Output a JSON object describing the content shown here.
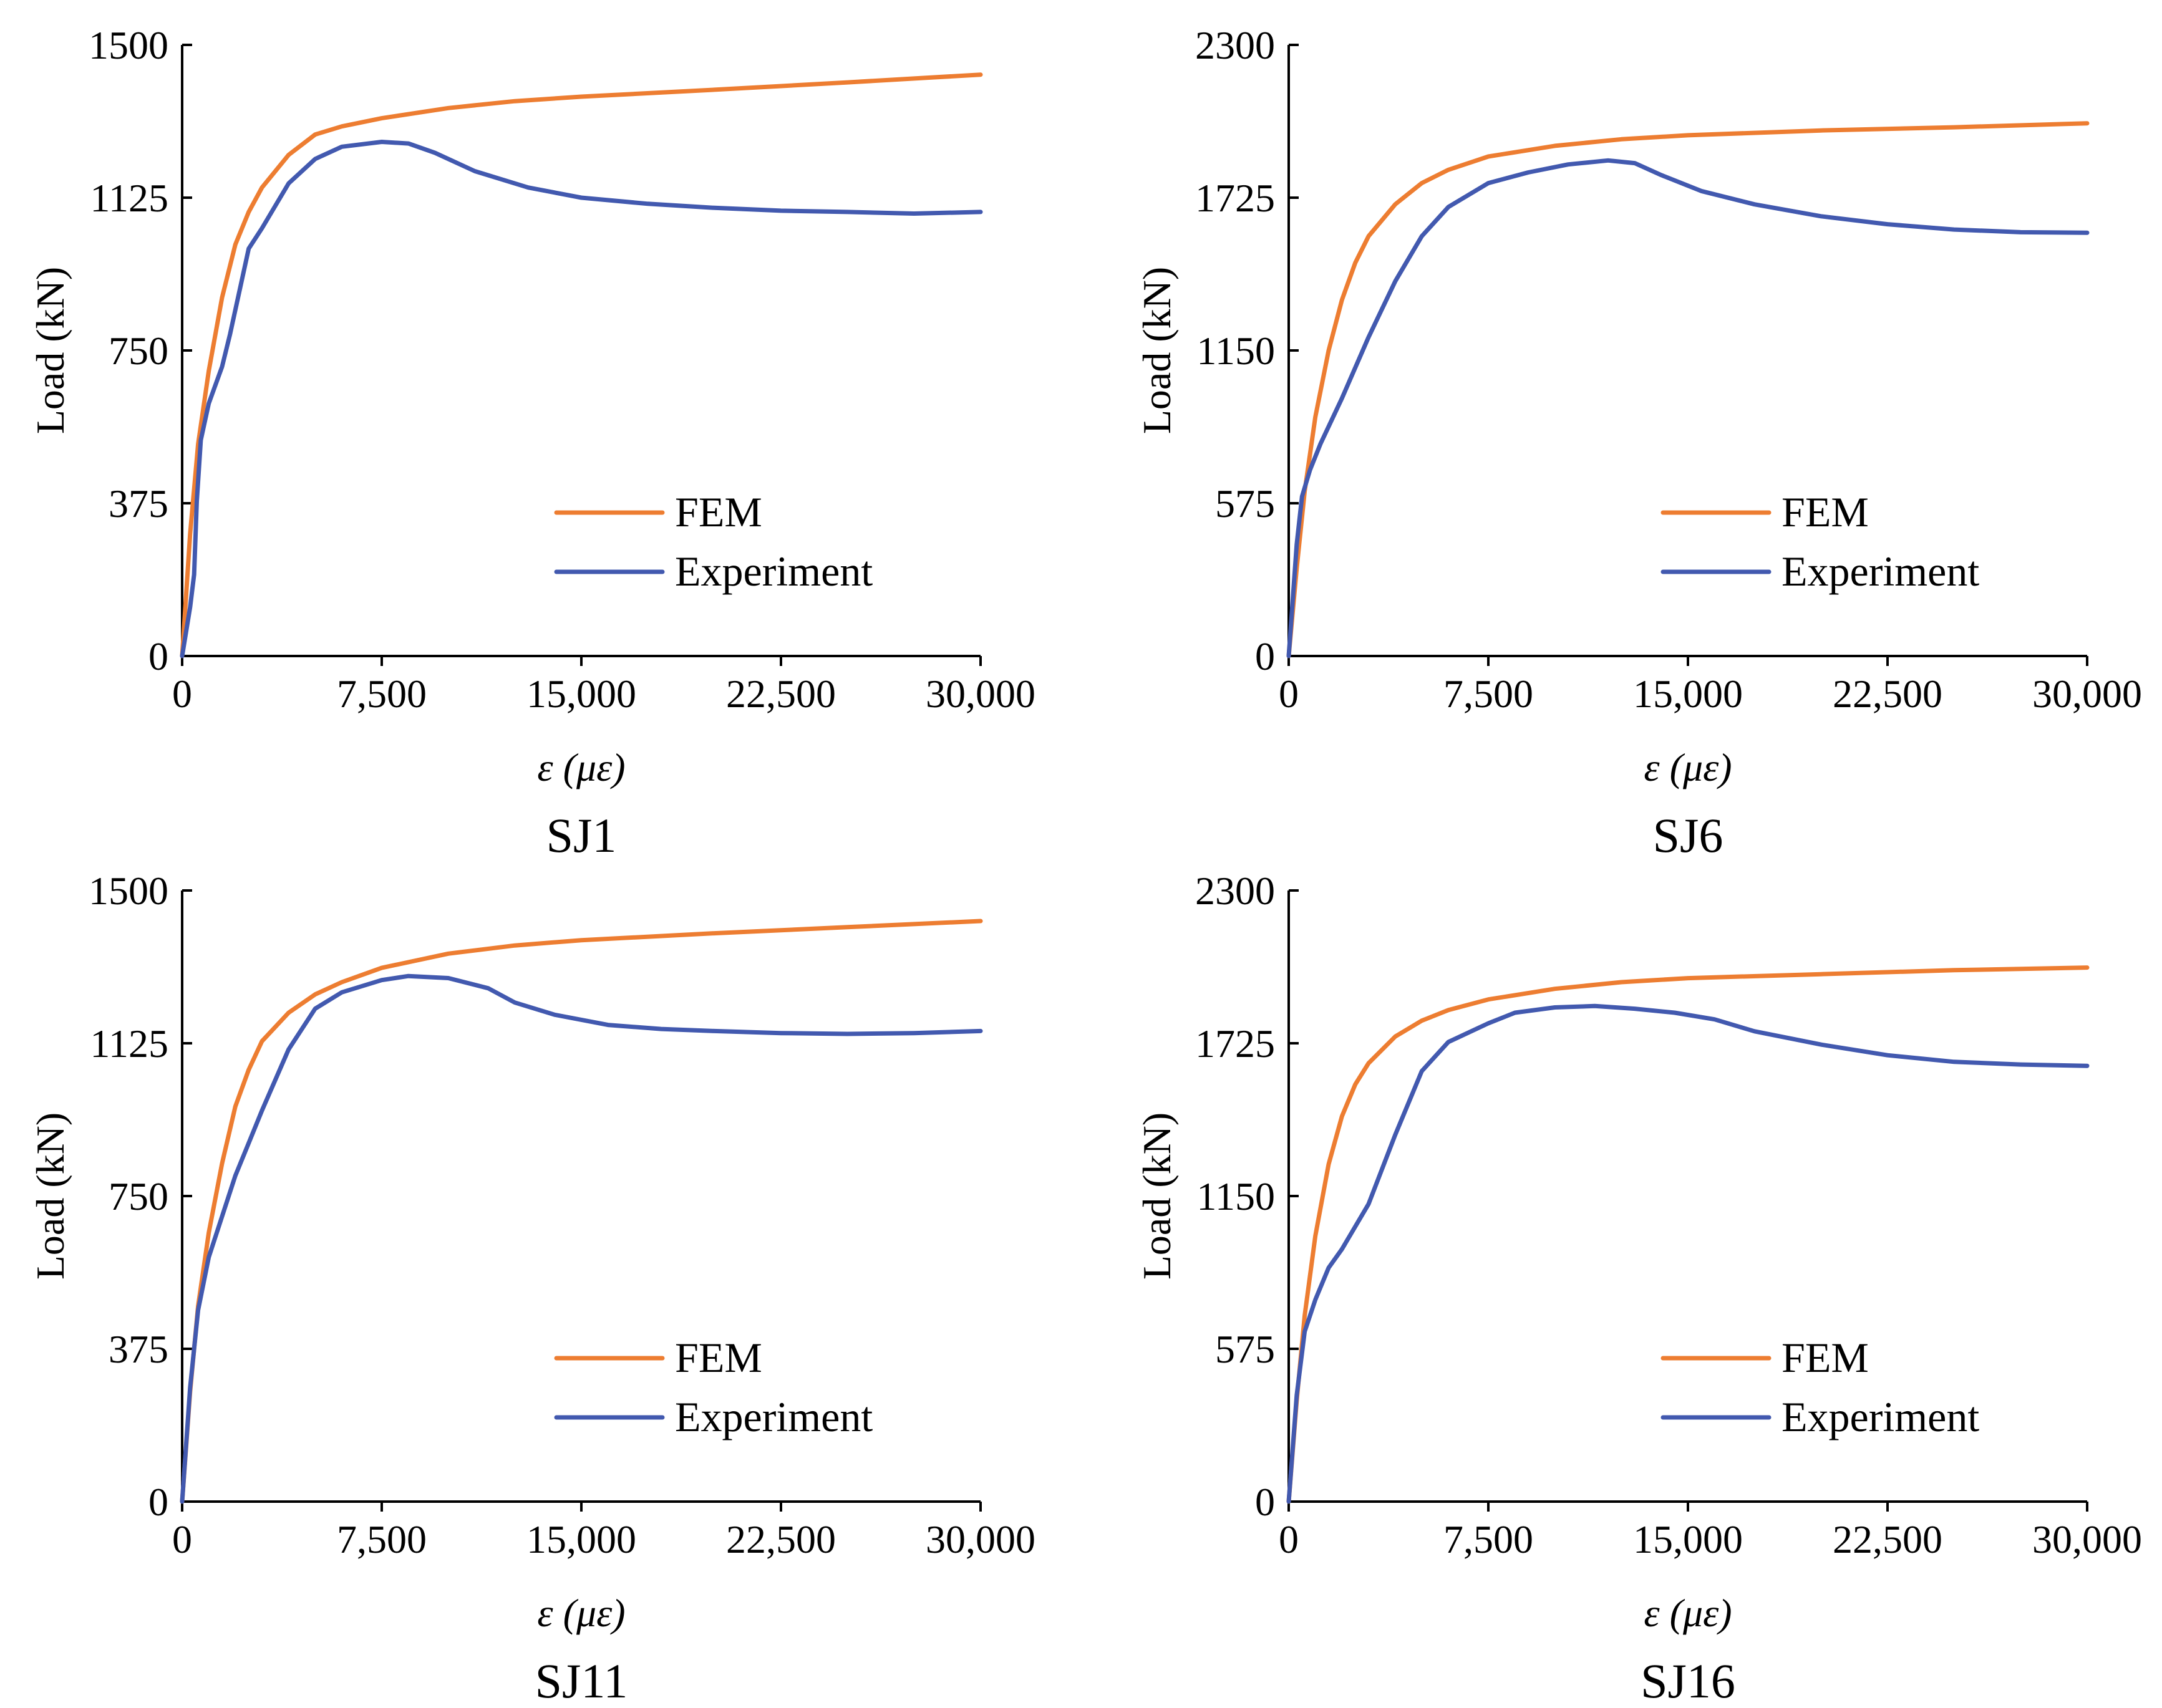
{
  "colors": {
    "fem": "#ED7D31",
    "experiment": "#4259AF"
  },
  "chart_data": [
    {
      "type": "line",
      "caption": "SJ1",
      "xlabel": "ε (με)",
      "ylabel": "Load (kN)",
      "xlim": [
        0,
        30000
      ],
      "ylim": [
        0,
        1500
      ],
      "xticks": [
        0,
        7500,
        15000,
        22500,
        30000
      ],
      "xtick_labels": [
        "0",
        "7,500",
        "15,000",
        "22,500",
        "30,000"
      ],
      "yticks": [
        0,
        375,
        750,
        1125,
        1500
      ],
      "ytick_labels": [
        "0",
        "375",
        "750",
        "1125",
        "1500"
      ],
      "legend": {
        "position": "lower-right",
        "entries": [
          "FEM",
          "Experiment"
        ]
      },
      "series": [
        {
          "name": "FEM",
          "color_key": "fem",
          "x": [
            0,
            300,
            600,
            1000,
            1500,
            2000,
            2500,
            3000,
            4000,
            5000,
            6000,
            7500,
            10000,
            12500,
            15000,
            20000,
            25000,
            30000
          ],
          "y": [
            0,
            300,
            520,
            700,
            880,
            1010,
            1090,
            1150,
            1230,
            1280,
            1300,
            1320,
            1345,
            1362,
            1373,
            1390,
            1408,
            1427
          ]
        },
        {
          "name": "Experiment",
          "color_key": "experiment",
          "x": [
            0,
            300,
            450,
            550,
            700,
            1000,
            1500,
            1800,
            2500,
            3000,
            4000,
            5000,
            6000,
            7500,
            8500,
            9500,
            11000,
            13000,
            15000,
            17500,
            20000,
            22500,
            25000,
            27500,
            30000
          ],
          "y": [
            0,
            120,
            200,
            380,
            530,
            620,
            710,
            790,
            1000,
            1050,
            1160,
            1220,
            1250,
            1262,
            1258,
            1235,
            1190,
            1150,
            1125,
            1110,
            1100,
            1093,
            1090,
            1086,
            1090
          ]
        }
      ]
    },
    {
      "type": "line",
      "caption": "SJ6",
      "xlabel": "ε (με)",
      "ylabel": "Load (kN)",
      "xlim": [
        0,
        30000
      ],
      "ylim": [
        0,
        2300
      ],
      "xticks": [
        0,
        7500,
        15000,
        22500,
        30000
      ],
      "xtick_labels": [
        "0",
        "7,500",
        "15,000",
        "22,500",
        "30,000"
      ],
      "yticks": [
        0,
        575,
        1150,
        1725,
        2300
      ],
      "ytick_labels": [
        "0",
        "575",
        "1150",
        "1725",
        "2300"
      ],
      "legend": {
        "position": "lower-right",
        "entries": [
          "FEM",
          "Experiment"
        ]
      },
      "series": [
        {
          "name": "FEM",
          "color_key": "fem",
          "x": [
            0,
            300,
            600,
            1000,
            1500,
            2000,
            2500,
            3000,
            4000,
            5000,
            6000,
            7500,
            10000,
            12500,
            15000,
            20000,
            25000,
            30000
          ],
          "y": [
            0,
            330,
            620,
            900,
            1150,
            1340,
            1480,
            1580,
            1700,
            1780,
            1830,
            1880,
            1920,
            1945,
            1960,
            1978,
            1990,
            2005
          ]
        },
        {
          "name": "Experiment",
          "color_key": "experiment",
          "x": [
            0,
            300,
            500,
            800,
            1200,
            2000,
            3000,
            4000,
            5000,
            6000,
            7500,
            9000,
            10500,
            12000,
            13000,
            14000,
            15500,
            17500,
            20000,
            22500,
            25000,
            27500,
            30000
          ],
          "y": [
            0,
            420,
            600,
            700,
            800,
            970,
            1200,
            1410,
            1580,
            1690,
            1780,
            1820,
            1850,
            1865,
            1855,
            1810,
            1750,
            1700,
            1655,
            1625,
            1605,
            1595,
            1593
          ]
        }
      ]
    },
    {
      "type": "line",
      "caption": "SJ11",
      "xlabel": "ε (με)",
      "ylabel": "Load (kN)",
      "xlim": [
        0,
        30000
      ],
      "ylim": [
        0,
        1500
      ],
      "xticks": [
        0,
        7500,
        15000,
        22500,
        30000
      ],
      "xtick_labels": [
        "0",
        "7,500",
        "15,000",
        "22,500",
        "30,000"
      ],
      "yticks": [
        0,
        375,
        750,
        1125,
        1500
      ],
      "ytick_labels": [
        "0",
        "375",
        "750",
        "1125",
        "1500"
      ],
      "legend": {
        "position": "lower-right",
        "entries": [
          "FEM",
          "Experiment"
        ]
      },
      "series": [
        {
          "name": "FEM",
          "color_key": "fem",
          "x": [
            0,
            300,
            600,
            1000,
            1500,
            2000,
            2500,
            3000,
            4000,
            5000,
            6000,
            7500,
            10000,
            12500,
            15000,
            20000,
            25000,
            30000
          ],
          "y": [
            0,
            270,
            480,
            660,
            830,
            970,
            1060,
            1130,
            1200,
            1245,
            1275,
            1310,
            1345,
            1365,
            1378,
            1395,
            1410,
            1425
          ]
        },
        {
          "name": "Experiment",
          "color_key": "experiment",
          "x": [
            0,
            300,
            600,
            1000,
            1500,
            2000,
            2500,
            3000,
            4000,
            5000,
            6000,
            7500,
            8500,
            10000,
            11500,
            12500,
            14000,
            16000,
            18000,
            20000,
            22500,
            25000,
            27500,
            30000
          ],
          "y": [
            0,
            280,
            470,
            600,
            700,
            800,
            880,
            960,
            1110,
            1210,
            1250,
            1280,
            1290,
            1285,
            1260,
            1225,
            1195,
            1170,
            1160,
            1155,
            1150,
            1148,
            1150,
            1155
          ]
        }
      ]
    },
    {
      "type": "line",
      "caption": "SJ16",
      "xlabel": "ε (με)",
      "ylabel": "Load (kN)",
      "xlim": [
        0,
        30000
      ],
      "ylim": [
        0,
        2300
      ],
      "xticks": [
        0,
        7500,
        15000,
        22500,
        30000
      ],
      "xtick_labels": [
        "0",
        "7,500",
        "15,000",
        "22,500",
        "30,000"
      ],
      "yticks": [
        0,
        575,
        1150,
        1725,
        2300
      ],
      "ytick_labels": [
        "0",
        "575",
        "1150",
        "1725",
        "2300"
      ],
      "legend": {
        "position": "lower-right",
        "entries": [
          "FEM",
          "Experiment"
        ]
      },
      "series": [
        {
          "name": "FEM",
          "color_key": "fem",
          "x": [
            0,
            300,
            600,
            1000,
            1500,
            2000,
            2500,
            3000,
            4000,
            5000,
            6000,
            7500,
            10000,
            12500,
            15000,
            20000,
            25000,
            30000
          ],
          "y": [
            0,
            380,
            700,
            1000,
            1270,
            1450,
            1570,
            1650,
            1750,
            1810,
            1850,
            1890,
            1930,
            1955,
            1970,
            1985,
            2000,
            2010
          ]
        },
        {
          "name": "Experiment",
          "color_key": "experiment",
          "x": [
            0,
            300,
            600,
            1000,
            1500,
            2000,
            3000,
            4000,
            5000,
            6000,
            7500,
            8500,
            10000,
            11500,
            13000,
            14500,
            16000,
            17500,
            20000,
            22500,
            25000,
            27500,
            30000
          ],
          "y": [
            0,
            400,
            640,
            760,
            880,
            950,
            1120,
            1380,
            1620,
            1730,
            1800,
            1840,
            1860,
            1865,
            1855,
            1840,
            1815,
            1770,
            1720,
            1680,
            1655,
            1645,
            1640
          ]
        }
      ]
    }
  ]
}
